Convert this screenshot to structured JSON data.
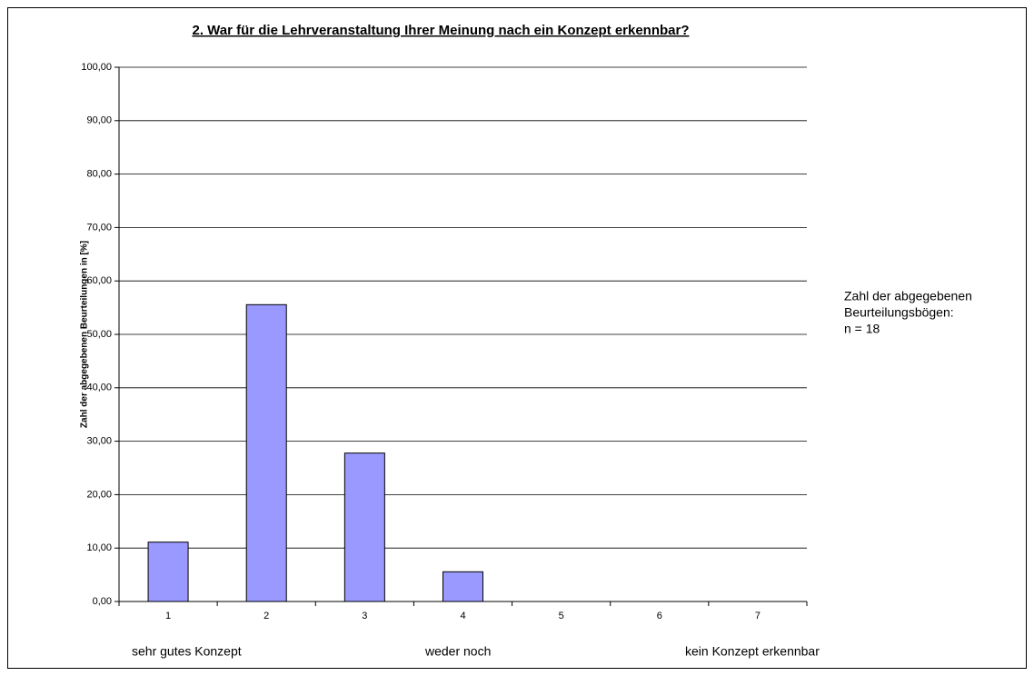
{
  "chart_data": {
    "type": "bar",
    "title": "2. War für die Lehrveranstaltung Ihrer Meinung nach ein Konzept erkennbar?",
    "y_label": "Zahl der abgegebenen Beurteilungen in [%]",
    "categories": [
      "1",
      "2",
      "3",
      "4",
      "5",
      "6",
      "7"
    ],
    "values": [
      11.11,
      55.56,
      27.78,
      5.56,
      0,
      0,
      0
    ],
    "color": "#9999ff",
    "ylim": [
      0,
      100
    ],
    "yticks": [
      {
        "value": 0,
        "label": "0,00"
      },
      {
        "value": 10,
        "label": "10,00"
      },
      {
        "value": 20,
        "label": "20,00"
      },
      {
        "value": 30,
        "label": "30,00"
      },
      {
        "value": 40,
        "label": "40,00"
      },
      {
        "value": 50,
        "label": "50,00"
      },
      {
        "value": 60,
        "label": "60,00"
      },
      {
        "value": 70,
        "label": "70,00"
      },
      {
        "value": 80,
        "label": "80,00"
      },
      {
        "value": 90,
        "label": "90,00"
      },
      {
        "value": 100,
        "label": "100,00"
      }
    ],
    "grid": true,
    "annotation_lines": [
      "Zahl der abgegebenen",
      "Beurteilungsbögen:",
      "n = 18"
    ],
    "scale_labels": [
      "sehr gutes Konzept",
      "weder noch",
      "kein Konzept erkennbar"
    ]
  }
}
